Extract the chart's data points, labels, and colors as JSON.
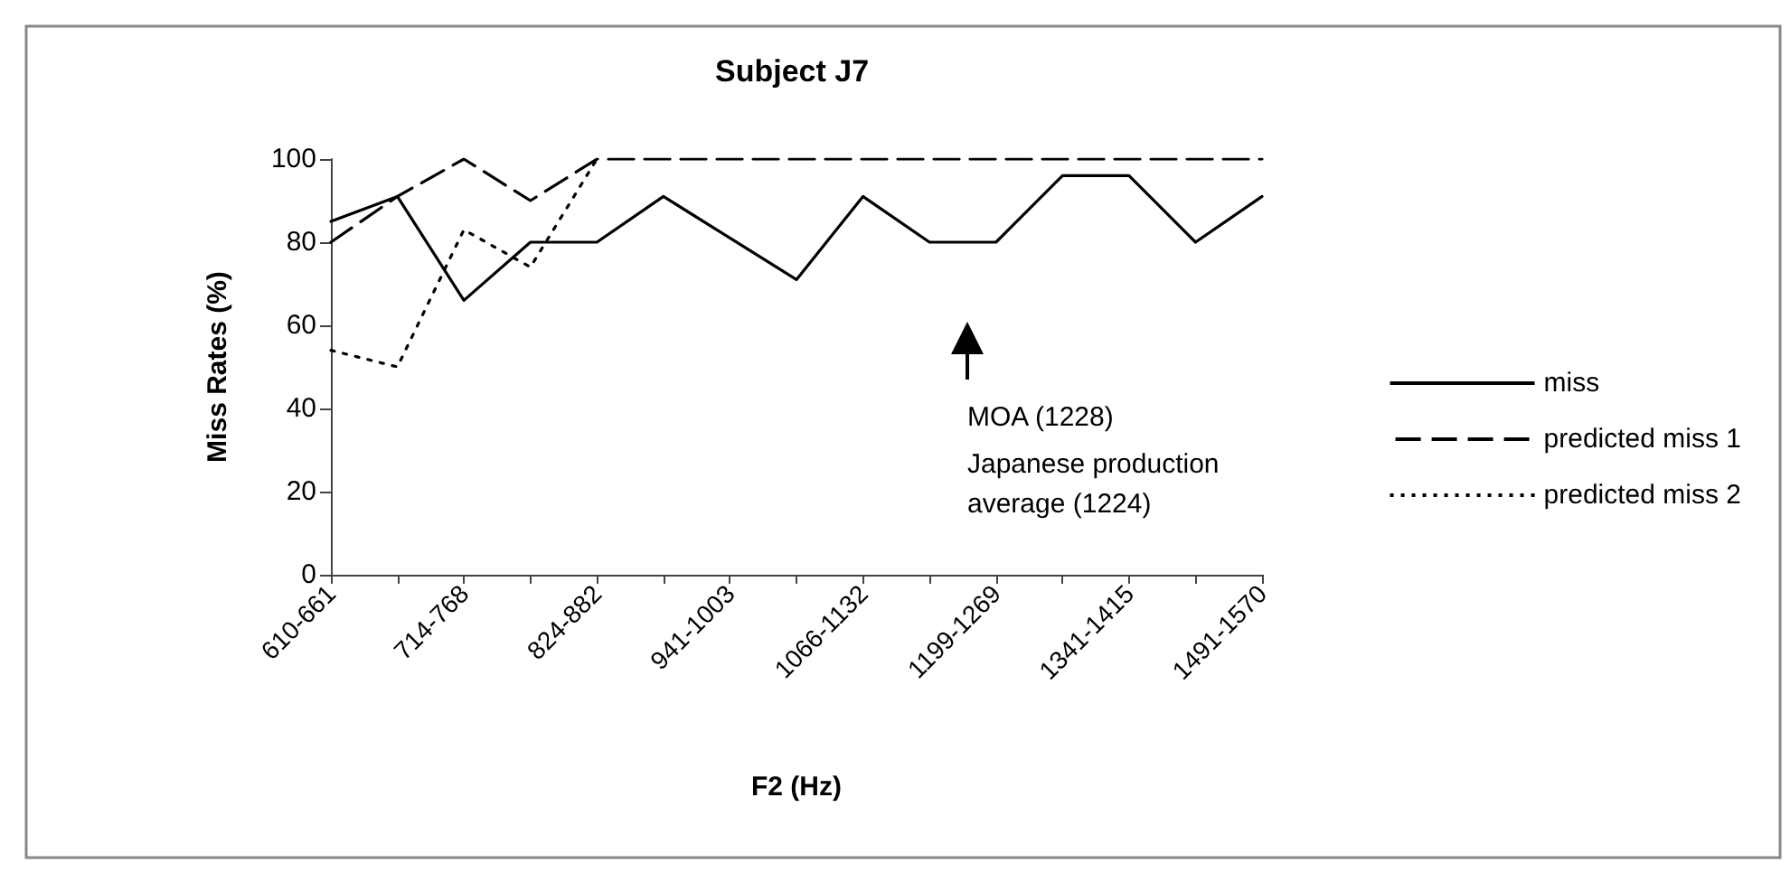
{
  "chart_data": {
    "type": "line",
    "title": "Subject J7",
    "xlabel": "F2 (Hz)",
    "ylabel": "Miss Rates (%)",
    "categories": [
      "610-661",
      null,
      "714-768",
      null,
      "824-882",
      null,
      "941-1003",
      null,
      "1066-1132",
      null,
      "1199-1269",
      null,
      "1341-1415",
      null,
      "1491-1570"
    ],
    "series": [
      {
        "name": "miss",
        "color": "#000000",
        "line_style": "solid",
        "values": [
          85,
          91,
          66,
          80,
          80,
          91,
          81,
          71,
          91,
          80,
          80,
          96,
          96,
          80,
          91
        ]
      },
      {
        "name": "predicted miss 1",
        "color": "#000000",
        "line_style": "dashed",
        "values": [
          80,
          91,
          100,
          90,
          100,
          100,
          100,
          100,
          100,
          100,
          100,
          100,
          100,
          100,
          100
        ]
      },
      {
        "name": "predicted miss 2",
        "color": "#000000",
        "line_style": "dotted",
        "values": [
          54,
          50,
          83,
          74,
          100,
          null,
          null,
          null,
          null,
          null,
          null,
          null,
          null,
          null,
          null
        ]
      }
    ],
    "ylim": [
      0,
      100
    ],
    "yticks": [
      0,
      20,
      40,
      60,
      80,
      100
    ],
    "grid": false,
    "legend": "right",
    "marker": "none",
    "annotations": [
      "MOA (1228)",
      "Japanese production average (1224)"
    ]
  }
}
